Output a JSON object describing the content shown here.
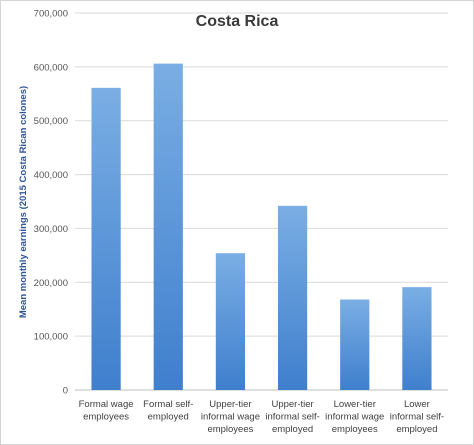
{
  "chart_data": {
    "type": "bar",
    "title": "Costa Rica",
    "xlabel": "",
    "ylabel": "Mean monthly earnings (2015 Costa Rican colones)",
    "categories": [
      [
        "Formal wage",
        "employees"
      ],
      [
        "Formal self-",
        "employed"
      ],
      [
        "Upper-tier",
        "informal wage",
        "employees"
      ],
      [
        "Upper-tier",
        "informal self-",
        "employed"
      ],
      [
        "Lower-tier",
        "informal wage",
        "employees"
      ],
      [
        "Lower",
        "informal self-",
        "employed"
      ]
    ],
    "values": [
      561000,
      606000,
      254000,
      342000,
      168000,
      191000
    ],
    "ylim": [
      0,
      700000
    ],
    "yticks": [
      0,
      100000,
      200000,
      300000,
      400000,
      500000,
      600000,
      700000
    ],
    "ytick_labels": [
      "0",
      "100,000",
      "200,000",
      "300,000",
      "400,000",
      "500,000",
      "600,000",
      "700,000"
    ],
    "grid": true,
    "legend": "none",
    "bar_color_top": "#7aaee4",
    "bar_color_bottom": "#3f7fcd"
  }
}
